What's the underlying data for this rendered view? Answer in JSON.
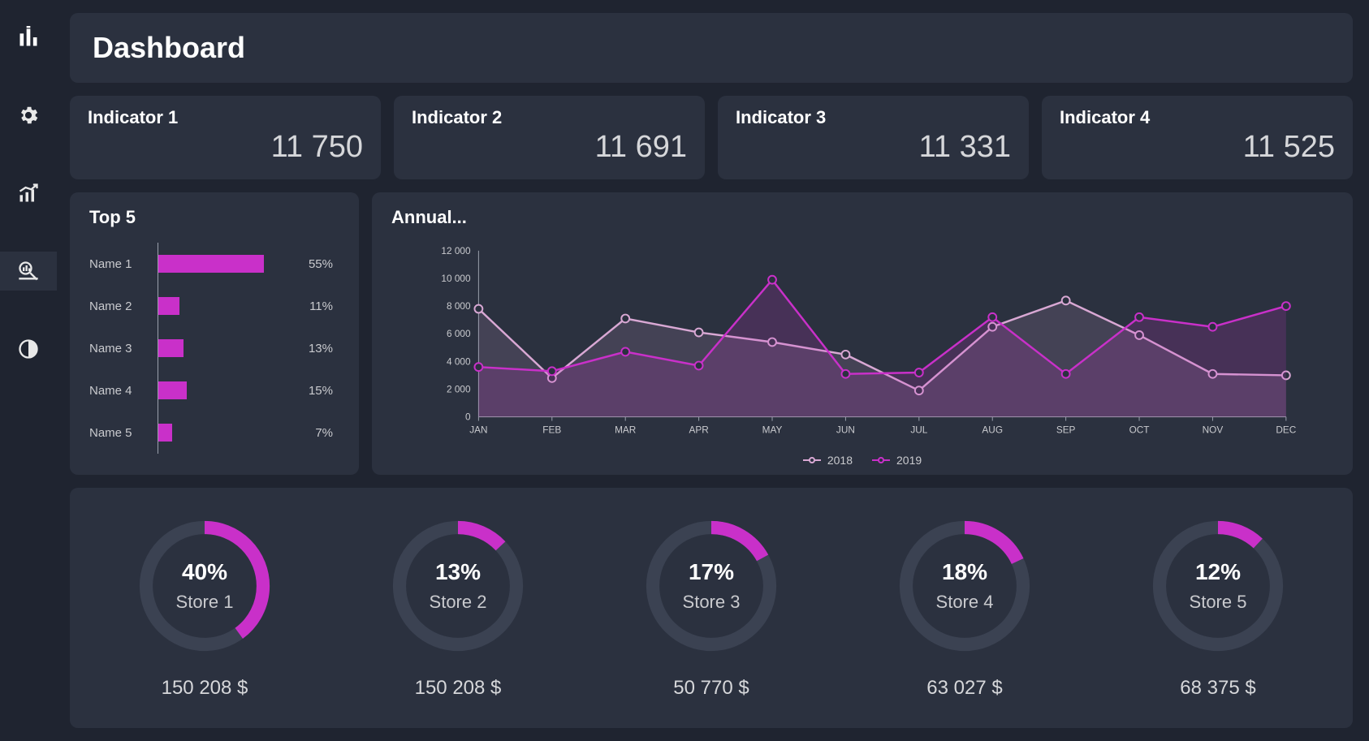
{
  "colors": {
    "bg": "#1f2430",
    "panel": "#2b313f",
    "text_primary": "#ffffff",
    "text_secondary": "#c9cace",
    "text_value": "#d6d7da",
    "accent": "#c930c9",
    "series_2018": "#d9a8d4",
    "series_2019": "#c930c9",
    "donut_track": "#3b4252",
    "axis": "#9aa0ad"
  },
  "header": {
    "title": "Dashboard"
  },
  "indicators": [
    {
      "label": "Indicator 1",
      "value": "11 750"
    },
    {
      "label": "Indicator 2",
      "value": "11 691"
    },
    {
      "label": "Indicator 3",
      "value": "11 331"
    },
    {
      "label": "Indicator 4",
      "value": "11 525"
    }
  ],
  "top5": {
    "title": "Top 5",
    "max_pct": 55,
    "bar_color": "#c930c9",
    "rows": [
      {
        "name": "Name 1",
        "pct": 55,
        "pct_label": "55%"
      },
      {
        "name": "Name 2",
        "pct": 11,
        "pct_label": "11%"
      },
      {
        "name": "Name 3",
        "pct": 13,
        "pct_label": "13%"
      },
      {
        "name": "Name 4",
        "pct": 15,
        "pct_label": "15%"
      },
      {
        "name": "Name 5",
        "pct": 7,
        "pct_label": "7%"
      }
    ]
  },
  "annual": {
    "title": "Annual...",
    "type": "line",
    "y_ticks": [
      0,
      2000,
      4000,
      6000,
      8000,
      10000,
      12000
    ],
    "y_tick_labels": [
      "0",
      "2 000",
      "4 000",
      "6 000",
      "8 000",
      "10 000",
      "12 000"
    ],
    "ylim": [
      0,
      12000
    ],
    "categories": [
      "JAN",
      "FEB",
      "MAR",
      "APR",
      "MAY",
      "JUN",
      "JUL",
      "AUG",
      "SEP",
      "OCT",
      "NOV",
      "DEC"
    ],
    "grid_color": "#3b4252",
    "axis_color": "#9aa0ad",
    "label_fontsize": 12,
    "marker_radius": 5,
    "line_width": 2.5,
    "series": [
      {
        "name": "2018",
        "color": "#d9a8d4",
        "fill_opacity": 0.15,
        "values": [
          7800,
          2800,
          7100,
          6100,
          5400,
          4500,
          1900,
          6500,
          8400,
          5900,
          3100,
          3000
        ]
      },
      {
        "name": "2019",
        "color": "#c930c9",
        "fill_opacity": 0.18,
        "values": [
          3600,
          3300,
          4700,
          3700,
          9900,
          3100,
          3200,
          7200,
          3100,
          7200,
          6500,
          8000
        ]
      }
    ]
  },
  "donuts": {
    "track_color": "#3b4252",
    "arc_color": "#c930c9",
    "stroke_width": 18,
    "items": [
      {
        "pct": 40,
        "pct_label": "40%",
        "label": "Store 1",
        "amount": "150 208 $"
      },
      {
        "pct": 13,
        "pct_label": "13%",
        "label": "Store 2",
        "amount": "150 208 $"
      },
      {
        "pct": 17,
        "pct_label": "17%",
        "label": "Store 3",
        "amount": "50 770 $"
      },
      {
        "pct": 18,
        "pct_label": "18%",
        "label": "Store 4",
        "amount": "63 027 $"
      },
      {
        "pct": 12,
        "pct_label": "12%",
        "label": "Store 5",
        "amount": "68 375 $"
      }
    ]
  },
  "sidebar": {
    "items": [
      {
        "id": "logo",
        "active": false
      },
      {
        "id": "settings",
        "active": false
      },
      {
        "id": "trends",
        "active": false
      },
      {
        "id": "analyze",
        "active": true
      },
      {
        "id": "contrast",
        "active": false
      }
    ]
  }
}
